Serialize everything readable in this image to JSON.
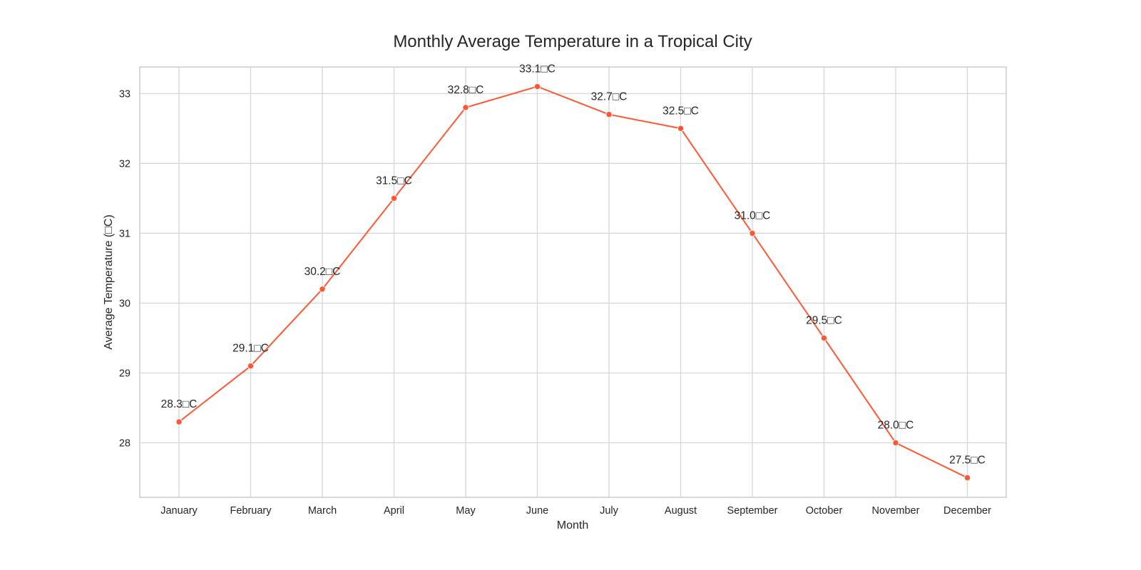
{
  "chart_data": {
    "type": "line",
    "title": "Monthly Average Temperature in a Tropical City",
    "xlabel": "Month",
    "ylabel": "Average Temperature (□C)",
    "categories": [
      "January",
      "February",
      "March",
      "April",
      "May",
      "June",
      "July",
      "August",
      "September",
      "October",
      "November",
      "December"
    ],
    "series": [
      {
        "values": [
          28.3,
          29.1,
          30.2,
          31.5,
          32.8,
          33.1,
          32.7,
          32.5,
          31.0,
          29.5,
          28.0,
          27.5
        ],
        "color": "#ff5733",
        "marker": "circle"
      }
    ],
    "data_labels": [
      "28.3□C",
      "29.1□C",
      "30.2□C",
      "31.5□C",
      "32.8□C",
      "33.1□C",
      "32.7□C",
      "32.5□C",
      "31.0□C",
      "29.5□C",
      "28.0□C",
      "27.5□C"
    ],
    "yticks": [
      28,
      29,
      30,
      31,
      32,
      33
    ],
    "ylim": [
      27.22,
      33.38
    ],
    "grid": true,
    "legend": "none"
  }
}
